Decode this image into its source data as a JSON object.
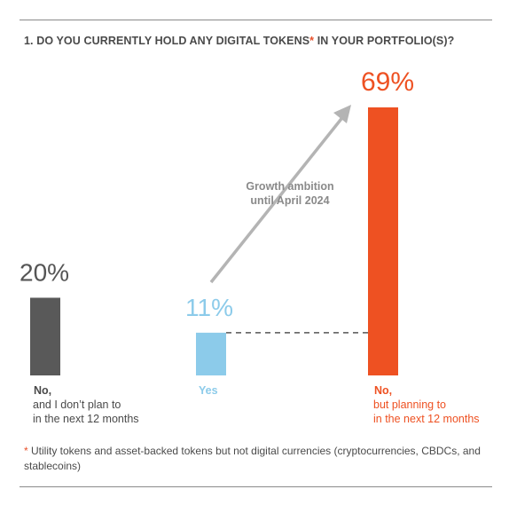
{
  "title": {
    "before": "1. DO YOU CURRENTLY HOLD ANY DIGITAL TOKENS",
    "asterisk": "*",
    "after": " IN YOUR PORTFOLIO(S)?"
  },
  "chart_data": {
    "type": "bar",
    "categories": [
      "No, and I don’t plan to in the next 12 months",
      "Yes",
      "No, but planning to in the next 12 months"
    ],
    "values": [
      20,
      11,
      69
    ],
    "value_labels": [
      "20%",
      "11%",
      "69%"
    ],
    "category_label_lines": [
      [
        "No,",
        "and I don’t plan to",
        "in the next 12 months"
      ],
      [
        "Yes"
      ],
      [
        "No,",
        "but planning to",
        "in the next 12 months"
      ]
    ],
    "colors": [
      "#595959",
      "#8ccbea",
      "#ee5122"
    ],
    "label_colors": [
      "#4a4a4a",
      "#8ccbea",
      "#ee5122"
    ],
    "value_label_colors": [
      "#555555",
      "#8ccbea",
      "#ee5122"
    ],
    "annotation": [
      "Growth ambition",
      "until April 2024"
    ],
    "arrow_color": "#b4b4b4",
    "ylim": [
      0,
      69
    ]
  },
  "footnote": {
    "asterisk": "*",
    "text": " Utility tokens and asset-backed tokens but not digital currencies (cryptocurrencies, CBDCs, and stablecoins)"
  }
}
